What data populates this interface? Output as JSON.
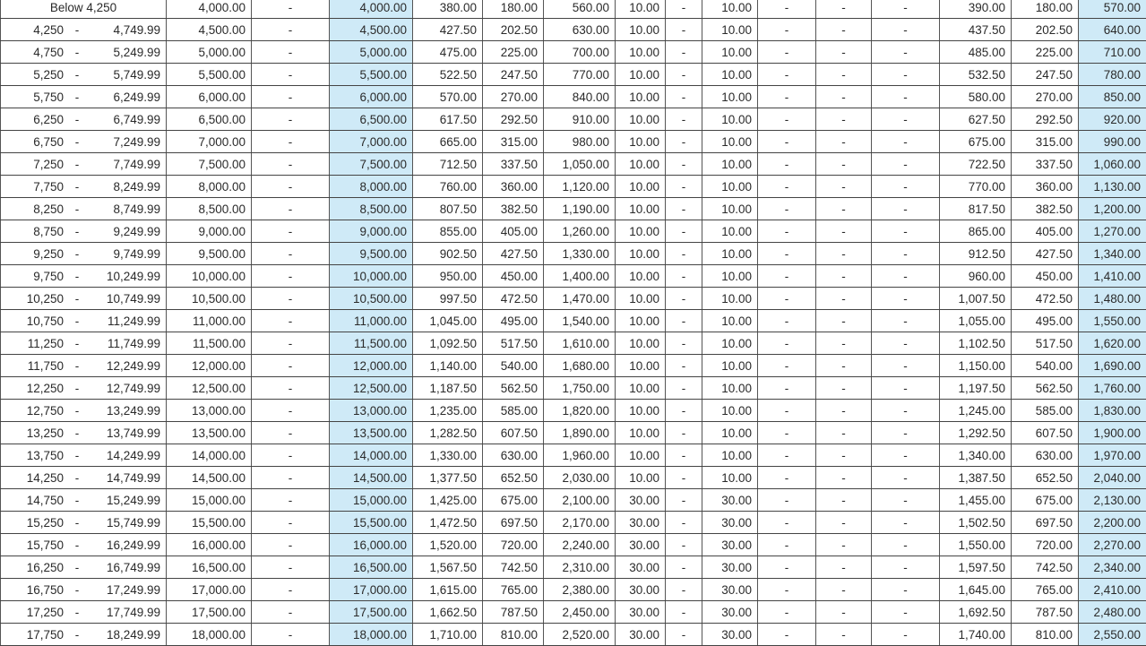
{
  "colors": {
    "highlight": "#cfeaf7",
    "grid": "#555555",
    "text": "#2a2a2a"
  },
  "rows": [
    [
      "Below 4,250",
      "",
      "4,000.00",
      "-",
      "4,000.00",
      "380.00",
      "180.00",
      "560.00",
      "10.00",
      "-",
      "10.00",
      "-",
      "-",
      "-",
      "390.00",
      "180.00",
      "570.00"
    ],
    [
      "4,250",
      "4,749.99",
      "4,500.00",
      "-",
      "4,500.00",
      "427.50",
      "202.50",
      "630.00",
      "10.00",
      "-",
      "10.00",
      "-",
      "-",
      "-",
      "437.50",
      "202.50",
      "640.00"
    ],
    [
      "4,750",
      "5,249.99",
      "5,000.00",
      "-",
      "5,000.00",
      "475.00",
      "225.00",
      "700.00",
      "10.00",
      "-",
      "10.00",
      "-",
      "-",
      "-",
      "485.00",
      "225.00",
      "710.00"
    ],
    [
      "5,250",
      "5,749.99",
      "5,500.00",
      "-",
      "5,500.00",
      "522.50",
      "247.50",
      "770.00",
      "10.00",
      "-",
      "10.00",
      "-",
      "-",
      "-",
      "532.50",
      "247.50",
      "780.00"
    ],
    [
      "5,750",
      "6,249.99",
      "6,000.00",
      "-",
      "6,000.00",
      "570.00",
      "270.00",
      "840.00",
      "10.00",
      "-",
      "10.00",
      "-",
      "-",
      "-",
      "580.00",
      "270.00",
      "850.00"
    ],
    [
      "6,250",
      "6,749.99",
      "6,500.00",
      "-",
      "6,500.00",
      "617.50",
      "292.50",
      "910.00",
      "10.00",
      "-",
      "10.00",
      "-",
      "-",
      "-",
      "627.50",
      "292.50",
      "920.00"
    ],
    [
      "6,750",
      "7,249.99",
      "7,000.00",
      "-",
      "7,000.00",
      "665.00",
      "315.00",
      "980.00",
      "10.00",
      "-",
      "10.00",
      "-",
      "-",
      "-",
      "675.00",
      "315.00",
      "990.00"
    ],
    [
      "7,250",
      "7,749.99",
      "7,500.00",
      "-",
      "7,500.00",
      "712.50",
      "337.50",
      "1,050.00",
      "10.00",
      "-",
      "10.00",
      "-",
      "-",
      "-",
      "722.50",
      "337.50",
      "1,060.00"
    ],
    [
      "7,750",
      "8,249.99",
      "8,000.00",
      "-",
      "8,000.00",
      "760.00",
      "360.00",
      "1,120.00",
      "10.00",
      "-",
      "10.00",
      "-",
      "-",
      "-",
      "770.00",
      "360.00",
      "1,130.00"
    ],
    [
      "8,250",
      "8,749.99",
      "8,500.00",
      "-",
      "8,500.00",
      "807.50",
      "382.50",
      "1,190.00",
      "10.00",
      "-",
      "10.00",
      "-",
      "-",
      "-",
      "817.50",
      "382.50",
      "1,200.00"
    ],
    [
      "8,750",
      "9,249.99",
      "9,000.00",
      "-",
      "9,000.00",
      "855.00",
      "405.00",
      "1,260.00",
      "10.00",
      "-",
      "10.00",
      "-",
      "-",
      "-",
      "865.00",
      "405.00",
      "1,270.00"
    ],
    [
      "9,250",
      "9,749.99",
      "9,500.00",
      "-",
      "9,500.00",
      "902.50",
      "427.50",
      "1,330.00",
      "10.00",
      "-",
      "10.00",
      "-",
      "-",
      "-",
      "912.50",
      "427.50",
      "1,340.00"
    ],
    [
      "9,750",
      "10,249.99",
      "10,000.00",
      "-",
      "10,000.00",
      "950.00",
      "450.00",
      "1,400.00",
      "10.00",
      "-",
      "10.00",
      "-",
      "-",
      "-",
      "960.00",
      "450.00",
      "1,410.00"
    ],
    [
      "10,250",
      "10,749.99",
      "10,500.00",
      "-",
      "10,500.00",
      "997.50",
      "472.50",
      "1,470.00",
      "10.00",
      "-",
      "10.00",
      "-",
      "-",
      "-",
      "1,007.50",
      "472.50",
      "1,480.00"
    ],
    [
      "10,750",
      "11,249.99",
      "11,000.00",
      "-",
      "11,000.00",
      "1,045.00",
      "495.00",
      "1,540.00",
      "10.00",
      "-",
      "10.00",
      "-",
      "-",
      "-",
      "1,055.00",
      "495.00",
      "1,550.00"
    ],
    [
      "11,250",
      "11,749.99",
      "11,500.00",
      "-",
      "11,500.00",
      "1,092.50",
      "517.50",
      "1,610.00",
      "10.00",
      "-",
      "10.00",
      "-",
      "-",
      "-",
      "1,102.50",
      "517.50",
      "1,620.00"
    ],
    [
      "11,750",
      "12,249.99",
      "12,000.00",
      "-",
      "12,000.00",
      "1,140.00",
      "540.00",
      "1,680.00",
      "10.00",
      "-",
      "10.00",
      "-",
      "-",
      "-",
      "1,150.00",
      "540.00",
      "1,690.00"
    ],
    [
      "12,250",
      "12,749.99",
      "12,500.00",
      "-",
      "12,500.00",
      "1,187.50",
      "562.50",
      "1,750.00",
      "10.00",
      "-",
      "10.00",
      "-",
      "-",
      "-",
      "1,197.50",
      "562.50",
      "1,760.00"
    ],
    [
      "12,750",
      "13,249.99",
      "13,000.00",
      "-",
      "13,000.00",
      "1,235.00",
      "585.00",
      "1,820.00",
      "10.00",
      "-",
      "10.00",
      "-",
      "-",
      "-",
      "1,245.00",
      "585.00",
      "1,830.00"
    ],
    [
      "13,250",
      "13,749.99",
      "13,500.00",
      "-",
      "13,500.00",
      "1,282.50",
      "607.50",
      "1,890.00",
      "10.00",
      "-",
      "10.00",
      "-",
      "-",
      "-",
      "1,292.50",
      "607.50",
      "1,900.00"
    ],
    [
      "13,750",
      "14,249.99",
      "14,000.00",
      "-",
      "14,000.00",
      "1,330.00",
      "630.00",
      "1,960.00",
      "10.00",
      "-",
      "10.00",
      "-",
      "-",
      "-",
      "1,340.00",
      "630.00",
      "1,970.00"
    ],
    [
      "14,250",
      "14,749.99",
      "14,500.00",
      "-",
      "14,500.00",
      "1,377.50",
      "652.50",
      "2,030.00",
      "10.00",
      "-",
      "10.00",
      "-",
      "-",
      "-",
      "1,387.50",
      "652.50",
      "2,040.00"
    ],
    [
      "14,750",
      "15,249.99",
      "15,000.00",
      "-",
      "15,000.00",
      "1,425.00",
      "675.00",
      "2,100.00",
      "30.00",
      "-",
      "30.00",
      "-",
      "-",
      "-",
      "1,455.00",
      "675.00",
      "2,130.00"
    ],
    [
      "15,250",
      "15,749.99",
      "15,500.00",
      "-",
      "15,500.00",
      "1,472.50",
      "697.50",
      "2,170.00",
      "30.00",
      "-",
      "30.00",
      "-",
      "-",
      "-",
      "1,502.50",
      "697.50",
      "2,200.00"
    ],
    [
      "15,750",
      "16,249.99",
      "16,000.00",
      "-",
      "16,000.00",
      "1,520.00",
      "720.00",
      "2,240.00",
      "30.00",
      "-",
      "30.00",
      "-",
      "-",
      "-",
      "1,550.00",
      "720.00",
      "2,270.00"
    ],
    [
      "16,250",
      "16,749.99",
      "16,500.00",
      "-",
      "16,500.00",
      "1,567.50",
      "742.50",
      "2,310.00",
      "30.00",
      "-",
      "30.00",
      "-",
      "-",
      "-",
      "1,597.50",
      "742.50",
      "2,340.00"
    ],
    [
      "16,750",
      "17,249.99",
      "17,000.00",
      "-",
      "17,000.00",
      "1,615.00",
      "765.00",
      "2,380.00",
      "30.00",
      "-",
      "30.00",
      "-",
      "-",
      "-",
      "1,645.00",
      "765.00",
      "2,410.00"
    ],
    [
      "17,250",
      "17,749.99",
      "17,500.00",
      "-",
      "17,500.00",
      "1,662.50",
      "787.50",
      "2,450.00",
      "30.00",
      "-",
      "30.00",
      "-",
      "-",
      "-",
      "1,692.50",
      "787.50",
      "2,480.00"
    ],
    [
      "17,750",
      "18,249.99",
      "18,000.00",
      "-",
      "18,000.00",
      "1,710.00",
      "810.00",
      "2,520.00",
      "30.00",
      "-",
      "30.00",
      "-",
      "-",
      "-",
      "1,740.00",
      "810.00",
      "2,550.00"
    ]
  ]
}
